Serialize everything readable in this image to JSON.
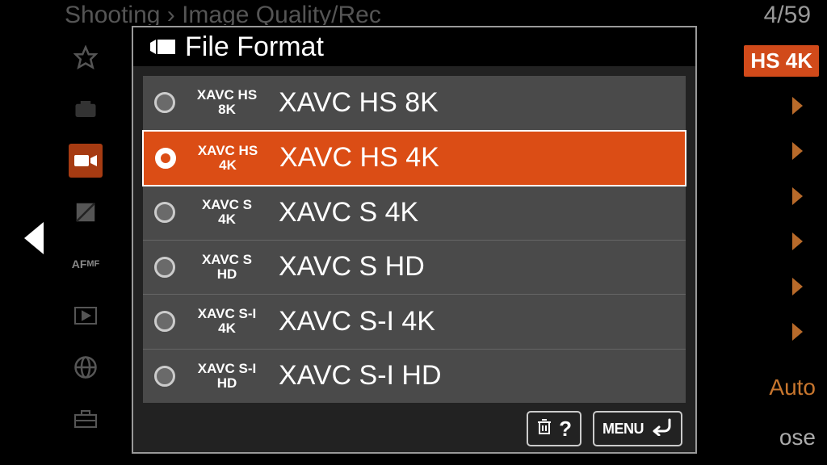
{
  "background": {
    "breadcrumb": "Shooting › Image Quality/Rec",
    "page_indicator": "4/59",
    "current_badge": "HS 4K",
    "right_auto_text": "Auto",
    "right_ose_text": "ose"
  },
  "dialog": {
    "title": "File Format",
    "options": [
      {
        "short_line1": "XAVC HS",
        "short_line2": "8K",
        "label": "XAVC HS 8K",
        "selected": false
      },
      {
        "short_line1": "XAVC HS",
        "short_line2": "4K",
        "label": "XAVC HS 4K",
        "selected": true
      },
      {
        "short_line1": "XAVC S",
        "short_line2": "4K",
        "label": "XAVC S 4K",
        "selected": false
      },
      {
        "short_line1": "XAVC S",
        "short_line2": "HD",
        "label": "XAVC S HD",
        "selected": false
      },
      {
        "short_line1": "XAVC S-I",
        "short_line2": "4K",
        "label": "XAVC S-I 4K",
        "selected": false
      },
      {
        "short_line1": "XAVC S-I",
        "short_line2": "HD",
        "label": "XAVC S-I HD",
        "selected": false
      }
    ],
    "footer": {
      "help_label": "?",
      "menu_label": "MENU"
    }
  },
  "colors": {
    "accent": "#db4d15",
    "panel": "#4a4a4a",
    "dialog_bg": "#222222",
    "border": "#999999"
  }
}
